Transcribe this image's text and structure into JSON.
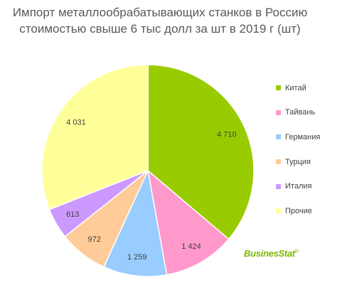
{
  "chart_data": {
    "type": "pie",
    "title_lines": [
      "Импорт металлообрабатывающих станков в Россию",
      "стоимостью свыше 6 тыс долл за шт в 2019 г (шт)"
    ],
    "categories": [
      "Китай",
      "Тайвань",
      "Германия",
      "Турция",
      "Италия",
      "Прочие"
    ],
    "values": [
      4710,
      1424,
      1259,
      972,
      613,
      4031
    ],
    "value_labels": [
      "4 710",
      "1 424",
      "1 259",
      "972",
      "613",
      "4 031"
    ],
    "colors": [
      "#99cc00",
      "#ff99cc",
      "#99ccff",
      "#ffcc99",
      "#cc99ff",
      "#ffff99"
    ],
    "legend_position": "right"
  },
  "logo": {
    "text": "BusinesStat",
    "mark": "®"
  }
}
